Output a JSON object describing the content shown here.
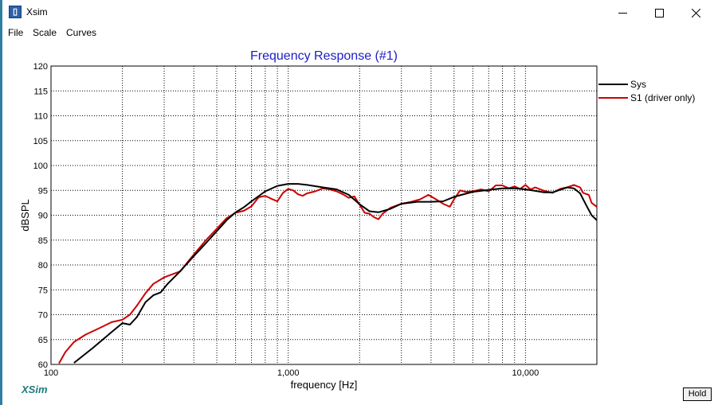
{
  "window": {
    "title": "Xsim"
  },
  "menu": [
    "File",
    "Scale",
    "Curves"
  ],
  "app_label": "XSim",
  "hold_button": "Hold",
  "colors": {
    "sys": "#000000",
    "s1": "#cc0000",
    "title": "#1c1cc8",
    "grid": "#000000"
  },
  "chart_data": {
    "type": "line",
    "title": "Frequency Response (#1)",
    "xlabel": "frequency [Hz]",
    "ylabel": "dBSPL",
    "x_scale": "log",
    "xlim": [
      100,
      20000
    ],
    "ylim": [
      60,
      120
    ],
    "x_ticks": [
      100,
      1000,
      10000
    ],
    "x_tick_labels": [
      "100",
      "1,000",
      "10,000"
    ],
    "y_ticks": [
      60,
      65,
      70,
      75,
      80,
      85,
      90,
      95,
      100,
      105,
      110,
      115,
      120
    ],
    "grid": true,
    "legend_position": "right",
    "series": [
      {
        "name": "Sys",
        "color": "#000000",
        "points": [
          [
            125,
            60.3
          ],
          [
            150,
            63.3
          ],
          [
            180,
            66.5
          ],
          [
            200,
            68.3
          ],
          [
            215,
            68.0
          ],
          [
            230,
            69.5
          ],
          [
            250,
            72.5
          ],
          [
            270,
            73.9
          ],
          [
            290,
            74.5
          ],
          [
            310,
            76.2
          ],
          [
            350,
            78.7
          ],
          [
            400,
            81.8
          ],
          [
            450,
            84.4
          ],
          [
            500,
            86.8
          ],
          [
            550,
            89.0
          ],
          [
            600,
            90.6
          ],
          [
            650,
            91.6
          ],
          [
            700,
            92.8
          ],
          [
            800,
            94.8
          ],
          [
            900,
            95.9
          ],
          [
            1000,
            96.3
          ],
          [
            1100,
            96.3
          ],
          [
            1200,
            96.1
          ],
          [
            1400,
            95.6
          ],
          [
            1600,
            95.2
          ],
          [
            1800,
            94.1
          ],
          [
            2000,
            92.2
          ],
          [
            2200,
            90.8
          ],
          [
            2400,
            90.6
          ],
          [
            2700,
            91.3
          ],
          [
            3000,
            92.3
          ],
          [
            3500,
            92.7
          ],
          [
            4000,
            92.7
          ],
          [
            4500,
            92.8
          ],
          [
            5000,
            93.7
          ],
          [
            6000,
            94.7
          ],
          [
            7000,
            95.1
          ],
          [
            8000,
            95.4
          ],
          [
            9000,
            95.4
          ],
          [
            10000,
            95.2
          ],
          [
            11000,
            94.9
          ],
          [
            12000,
            94.6
          ],
          [
            13000,
            94.6
          ],
          [
            14000,
            95.1
          ],
          [
            15000,
            95.6
          ],
          [
            16000,
            95.4
          ],
          [
            17000,
            94.4
          ],
          [
            18000,
            92.1
          ],
          [
            19000,
            90.0
          ],
          [
            20000,
            89.0
          ]
        ]
      },
      {
        "name": "S1 (driver only)",
        "color": "#cc0000",
        "points": [
          [
            108,
            60.2
          ],
          [
            115,
            62.5
          ],
          [
            125,
            64.5
          ],
          [
            140,
            66.0
          ],
          [
            160,
            67.3
          ],
          [
            180,
            68.5
          ],
          [
            200,
            69.0
          ],
          [
            215,
            70.0
          ],
          [
            230,
            71.8
          ],
          [
            250,
            74.3
          ],
          [
            270,
            76.2
          ],
          [
            300,
            77.5
          ],
          [
            350,
            78.7
          ],
          [
            400,
            82.1
          ],
          [
            450,
            85.0
          ],
          [
            500,
            87.3
          ],
          [
            550,
            89.4
          ],
          [
            600,
            90.5
          ],
          [
            650,
            90.9
          ],
          [
            700,
            91.8
          ],
          [
            750,
            93.6
          ],
          [
            800,
            93.9
          ],
          [
            850,
            93.3
          ],
          [
            900,
            92.8
          ],
          [
            950,
            94.5
          ],
          [
            1000,
            95.3
          ],
          [
            1050,
            95.0
          ],
          [
            1100,
            94.2
          ],
          [
            1150,
            93.9
          ],
          [
            1200,
            94.4
          ],
          [
            1300,
            94.8
          ],
          [
            1400,
            95.4
          ],
          [
            1500,
            95.2
          ],
          [
            1600,
            94.8
          ],
          [
            1700,
            94.2
          ],
          [
            1800,
            93.5
          ],
          [
            1900,
            93.8
          ],
          [
            2000,
            92.1
          ],
          [
            2100,
            90.5
          ],
          [
            2200,
            90.3
          ],
          [
            2300,
            89.6
          ],
          [
            2400,
            89.2
          ],
          [
            2500,
            90.3
          ],
          [
            2700,
            91.5
          ],
          [
            3000,
            92.3
          ],
          [
            3300,
            92.7
          ],
          [
            3600,
            93.2
          ],
          [
            3900,
            94.1
          ],
          [
            4200,
            93.2
          ],
          [
            4500,
            92.3
          ],
          [
            4800,
            91.7
          ],
          [
            5000,
            93.2
          ],
          [
            5300,
            95.0
          ],
          [
            5600,
            94.7
          ],
          [
            6000,
            94.8
          ],
          [
            6500,
            95.2
          ],
          [
            7000,
            94.8
          ],
          [
            7500,
            96.0
          ],
          [
            8000,
            96.0
          ],
          [
            8500,
            95.4
          ],
          [
            9000,
            95.8
          ],
          [
            9500,
            95.3
          ],
          [
            10000,
            96.1
          ],
          [
            10500,
            95.2
          ],
          [
            11000,
            95.6
          ],
          [
            12000,
            94.9
          ],
          [
            13000,
            94.5
          ],
          [
            14000,
            95.3
          ],
          [
            15000,
            95.6
          ],
          [
            16000,
            96.1
          ],
          [
            17000,
            95.6
          ],
          [
            17500,
            94.5
          ],
          [
            18500,
            94.1
          ],
          [
            19000,
            92.5
          ],
          [
            20000,
            91.7
          ]
        ]
      }
    ]
  }
}
